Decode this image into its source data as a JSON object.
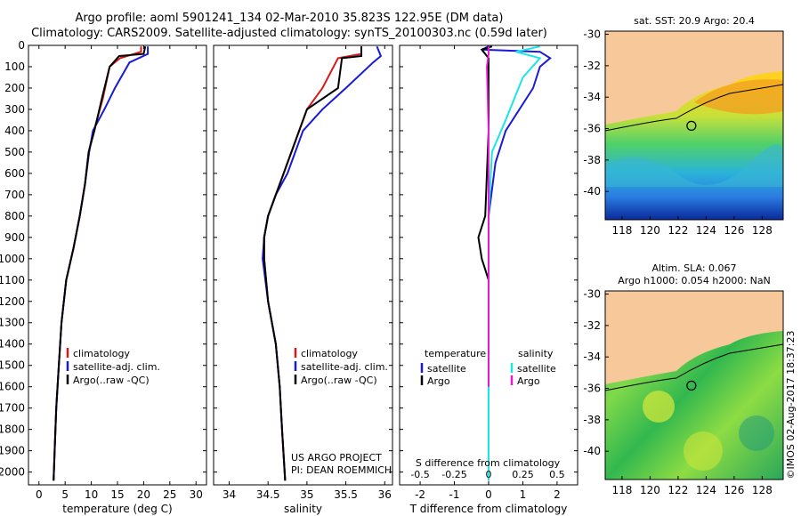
{
  "header": {
    "title_line1": "Argo profile: aoml 5901241_134 02-Mar-2010 35.823S 122.95E (DM data)",
    "title_line2": "Climatology: CARS2009. Satellite-adjusted climatology: synTS_20100303.nc (0.59d later)"
  },
  "colors": {
    "climatology": "#d61a1a",
    "satellite": "#1a1ad6",
    "argo": "#000000",
    "cyan": "#19e6e6",
    "magenta": "#e619d4",
    "land": "#f7c99a"
  },
  "chart_data": [
    {
      "type": "line",
      "xlabel": "temperature (deg C)",
      "ylabel": "",
      "xlim": [
        -2,
        32
      ],
      "ylim": [
        2060,
        0
      ],
      "x_ticks": [
        0,
        5,
        10,
        15,
        20,
        25,
        30
      ],
      "y_ticks": [
        0,
        100,
        200,
        300,
        400,
        500,
        600,
        700,
        800,
        900,
        1000,
        1100,
        1200,
        1300,
        1400,
        1500,
        1600,
        1700,
        1800,
        1900,
        2000
      ],
      "legend": [
        "climatology",
        "satellite-adj. clim.",
        "Argo(..raw -QC)"
      ],
      "series": [
        {
          "name": "climatology",
          "color": "#d61a1a",
          "points": [
            [
              19.5,
              5
            ],
            [
              19.5,
              30
            ],
            [
              15.5,
              60
            ],
            [
              13.5,
              100
            ],
            [
              12.2,
              250
            ],
            [
              10.5,
              400
            ],
            [
              9.5,
              500
            ],
            [
              8.8,
              650
            ],
            [
              7.8,
              800
            ],
            [
              6.6,
              950
            ],
            [
              5.2,
              1100
            ],
            [
              4.3,
              1300
            ],
            [
              3.8,
              1500
            ],
            [
              3.3,
              1700
            ],
            [
              3,
              1900
            ],
            [
              2.8,
              2040
            ]
          ]
        },
        {
          "name": "satellite-adj. clim.",
          "color": "#1a1ad6",
          "points": [
            [
              20.8,
              5
            ],
            [
              20.8,
              40
            ],
            [
              17.3,
              80
            ],
            [
              14.5,
              200
            ],
            [
              12.5,
              300
            ],
            [
              10.3,
              400
            ],
            [
              9.6,
              500
            ],
            [
              8.8,
              650
            ],
            [
              7.8,
              800
            ],
            [
              6.6,
              950
            ],
            [
              5.2,
              1100
            ],
            [
              4.3,
              1300
            ],
            [
              3.8,
              1500
            ],
            [
              3.3,
              1700
            ],
            [
              3,
              1900
            ],
            [
              2.8,
              2040
            ]
          ]
        },
        {
          "name": "Argo(..raw -QC)",
          "color": "#000000",
          "points": [
            [
              20.3,
              5
            ],
            [
              20,
              40
            ],
            [
              15.3,
              50
            ],
            [
              13.5,
              100
            ],
            [
              12,
              250
            ],
            [
              10.6,
              400
            ],
            [
              9.5,
              500
            ],
            [
              8.8,
              650
            ],
            [
              7.8,
              800
            ],
            [
              6.6,
              950
            ],
            [
              5.2,
              1100
            ],
            [
              4.3,
              1300
            ],
            [
              3.8,
              1500
            ],
            [
              3.3,
              1700
            ],
            [
              3,
              1900
            ],
            [
              2.8,
              2040
            ]
          ]
        }
      ]
    },
    {
      "type": "line",
      "xlabel": "salinity",
      "ylabel": "",
      "xlim": [
        33.8,
        36.1
      ],
      "ylim": [
        2060,
        0
      ],
      "x_ticks": [
        34,
        34.5,
        35,
        35.5,
        36
      ],
      "legend": [
        "climatology",
        "satellite-adj. clim.",
        "Argo(..raw -QC)"
      ],
      "annotation": [
        "US ARGO PROJECT",
        "PI: DEAN ROEMMICH"
      ],
      "series": [
        {
          "name": "climatology",
          "color": "#d61a1a",
          "points": [
            [
              35.7,
              5
            ],
            [
              35.7,
              40
            ],
            [
              35.4,
              60
            ],
            [
              35.2,
              200
            ],
            [
              35,
              300
            ],
            [
              34.85,
              450
            ],
            [
              34.7,
              600
            ],
            [
              34.6,
              700
            ],
            [
              34.5,
              800
            ],
            [
              34.45,
              900
            ],
            [
              34.45,
              1000
            ],
            [
              34.5,
              1200
            ],
            [
              34.6,
              1400
            ],
            [
              34.65,
              1600
            ],
            [
              34.68,
              1800
            ],
            [
              34.72,
              2040
            ]
          ]
        },
        {
          "name": "satellite-adj. clim.",
          "color": "#1a1ad6",
          "points": [
            [
              35.9,
              5
            ],
            [
              35.95,
              50
            ],
            [
              35.85,
              80
            ],
            [
              35.5,
              200
            ],
            [
              35.2,
              300
            ],
            [
              34.95,
              400
            ],
            [
              34.75,
              600
            ],
            [
              34.6,
              700
            ],
            [
              34.5,
              800
            ],
            [
              34.45,
              900
            ],
            [
              34.43,
              1000
            ],
            [
              34.5,
              1200
            ],
            [
              34.6,
              1400
            ],
            [
              34.65,
              1600
            ],
            [
              34.68,
              1800
            ],
            [
              34.72,
              2040
            ]
          ]
        },
        {
          "name": "Argo(..raw -QC)",
          "color": "#000000",
          "points": [
            [
              35.7,
              5
            ],
            [
              35.7,
              50
            ],
            [
              35.45,
              60
            ],
            [
              35.4,
              200
            ],
            [
              35,
              300
            ],
            [
              34.85,
              450
            ],
            [
              34.7,
              600
            ],
            [
              34.6,
              700
            ],
            [
              34.5,
              800
            ],
            [
              34.45,
              900
            ],
            [
              34.45,
              1000
            ],
            [
              34.5,
              1200
            ],
            [
              34.6,
              1400
            ],
            [
              34.65,
              1600
            ],
            [
              34.68,
              1800
            ],
            [
              34.72,
              2040
            ]
          ]
        }
      ]
    },
    {
      "type": "line",
      "xlabel": "T difference from climatology",
      "top_axis_label": "S difference from climatology",
      "xlim": [
        -2.6,
        2.6
      ],
      "ylim": [
        2060,
        0
      ],
      "x_ticks": [
        -2,
        -1,
        0,
        1,
        2
      ],
      "x_ticks_top": [
        "-0.5",
        "-0.25",
        "0",
        "0.25",
        "0.5"
      ],
      "legend_temperature": [
        "temperature",
        "satellite",
        "Argo"
      ],
      "legend_salinity": [
        "salinity",
        "satellite",
        "Argo"
      ],
      "series": [
        {
          "name": "satellite",
          "color": "#1a1ad6",
          "points": [
            [
              0,
              5
            ],
            [
              -0.2,
              20
            ],
            [
              1.5,
              30
            ],
            [
              1.8,
              60
            ],
            [
              1.5,
              100
            ],
            [
              1.3,
              200
            ],
            [
              0.5,
              400
            ],
            [
              0.2,
              550
            ],
            [
              0,
              800
            ],
            [
              0,
              2040
            ]
          ]
        },
        {
          "name": "Argo",
          "color": "#000000",
          "points": [
            [
              0.1,
              5
            ],
            [
              -0.2,
              20
            ],
            [
              0,
              60
            ],
            [
              0,
              400
            ],
            [
              -0.1,
              800
            ],
            [
              -0.3,
              900
            ],
            [
              -0.2,
              1000
            ],
            [
              0,
              1100
            ],
            [
              0,
              1600
            ]
          ]
        },
        {
          "name": "satellite",
          "color": "#19e6e6",
          "points": [
            [
              1.5,
              5
            ],
            [
              0.8,
              30
            ],
            [
              1.5,
              60
            ],
            [
              1,
              150
            ],
            [
              0.5,
              350
            ],
            [
              0.1,
              500
            ],
            [
              0,
              800
            ],
            [
              0,
              2040
            ]
          ]
        },
        {
          "name": "Argo",
          "color": "#e619d4",
          "points": [
            [
              0,
              5
            ],
            [
              0,
              40
            ],
            [
              -0.05,
              100
            ],
            [
              0,
              400
            ],
            [
              0,
              800
            ],
            [
              0,
              1600
            ]
          ]
        }
      ]
    },
    {
      "type": "heatmap",
      "title": "sat. SST: 20.9 Argo: 20.4",
      "xlim": [
        116.8,
        129.5
      ],
      "ylim": [
        -41.8,
        -29.8
      ],
      "x_ticks": [
        118,
        120,
        122,
        124,
        126,
        128
      ],
      "y_ticks": [
        -30,
        -32,
        -34,
        -36,
        -38,
        -40
      ],
      "marker": [
        122.95,
        -35.82
      ]
    },
    {
      "type": "heatmap",
      "title": "Altim. SLA: 0.067",
      "subtitle": "Argo h1000: 0.054 h2000: NaN",
      "xlim": [
        116.8,
        129.5
      ],
      "ylim": [
        -41.8,
        -29.8
      ],
      "x_ticks": [
        118,
        120,
        122,
        124,
        126,
        128
      ],
      "y_ticks": [
        -30,
        -32,
        -34,
        -36,
        -38,
        -40
      ],
      "marker": [
        122.95,
        -35.82
      ]
    }
  ],
  "footer": {
    "credit": "©IMOS 02-Aug-2017 18:37:23"
  }
}
